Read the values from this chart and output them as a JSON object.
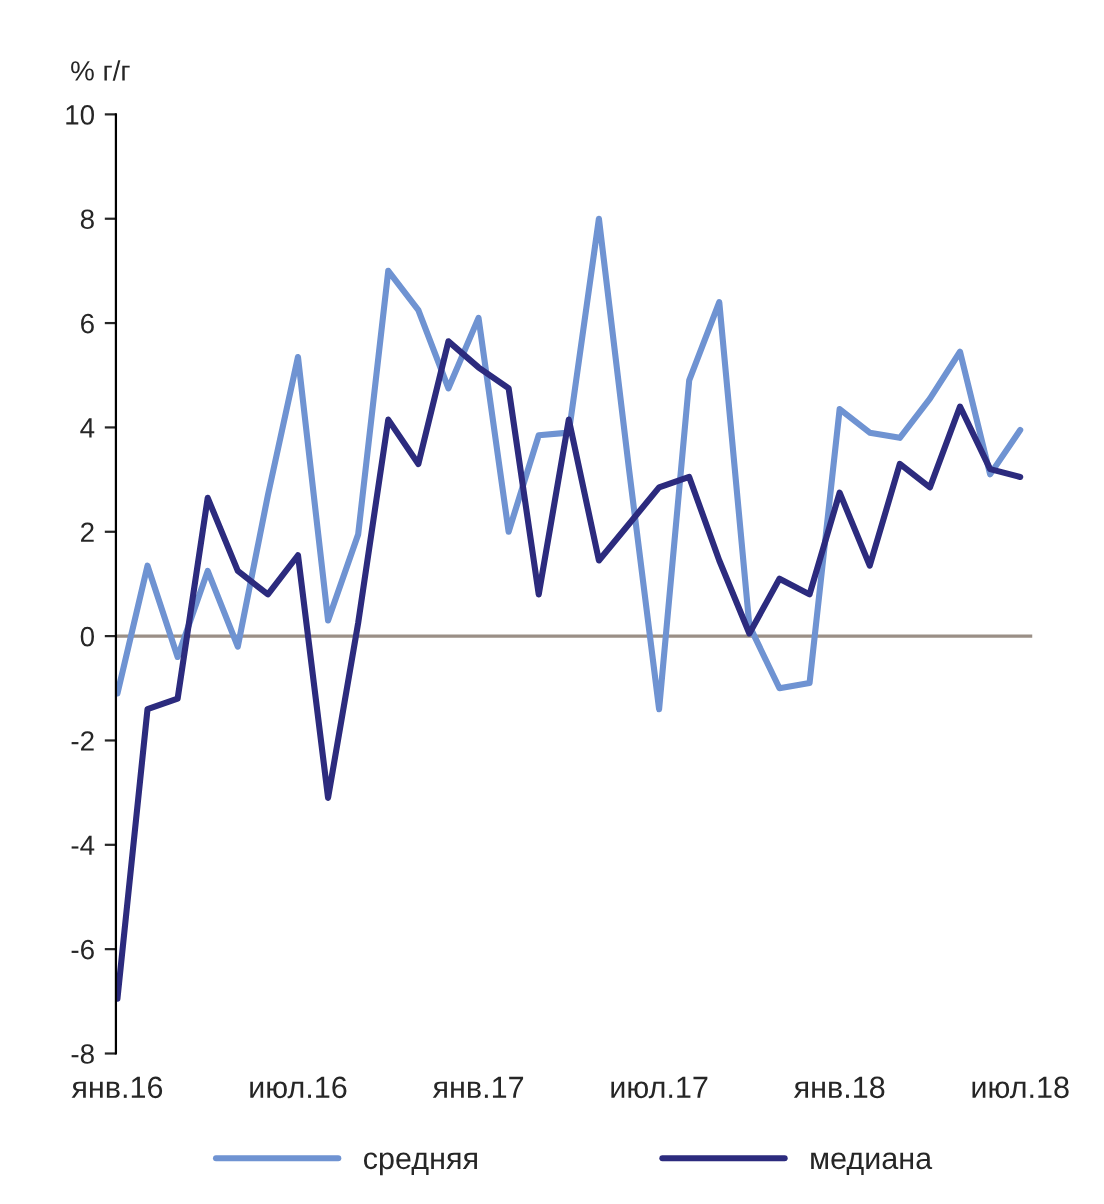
{
  "chart_data": {
    "type": "line",
    "ylabel": "% г/г",
    "categories": [
      "янв.16",
      null,
      null,
      null,
      null,
      null,
      "июл.16",
      null,
      null,
      null,
      null,
      null,
      "янв.17",
      null,
      null,
      null,
      null,
      null,
      "июл.17",
      null,
      null,
      null,
      null,
      null,
      "янв.18",
      null,
      null,
      null,
      null,
      null,
      "июл.18"
    ],
    "series": [
      {
        "name": "средняя",
        "color": "#6f93d2",
        "values": [
          -1.1,
          1.35,
          -0.4,
          1.25,
          -0.2,
          2.7,
          5.35,
          0.3,
          1.95,
          7.0,
          6.25,
          4.75,
          6.1,
          2.0,
          3.85,
          3.9,
          8.0,
          3.2,
          -1.4,
          4.9,
          6.4,
          0.2,
          -1.0,
          -0.9,
          4.35,
          3.9,
          3.8,
          4.55,
          5.45,
          3.1,
          3.95
        ]
      },
      {
        "name": "медиана",
        "color": "#2c2b7e",
        "values": [
          -6.95,
          -1.4,
          -1.2,
          2.65,
          1.25,
          0.8,
          1.55,
          -3.1,
          0.25,
          4.15,
          3.3,
          5.65,
          5.15,
          4.75,
          0.8,
          4.15,
          1.45,
          2.15,
          2.85,
          3.05,
          1.45,
          0.05,
          1.1,
          0.8,
          2.75,
          1.35,
          3.3,
          2.85,
          4.4,
          3.2,
          3.05
        ]
      }
    ],
    "ylim": [
      -8,
      10
    ],
    "yticks": [
      -8,
      -6,
      -4,
      -2,
      0,
      2,
      4,
      6,
      8,
      10
    ],
    "ref_lines": [
      {
        "axis": "y",
        "value": 0,
        "color": "#9a8f86"
      }
    ],
    "grid": false,
    "legend": "bottom",
    "marker": "none",
    "line_style": "solid"
  }
}
